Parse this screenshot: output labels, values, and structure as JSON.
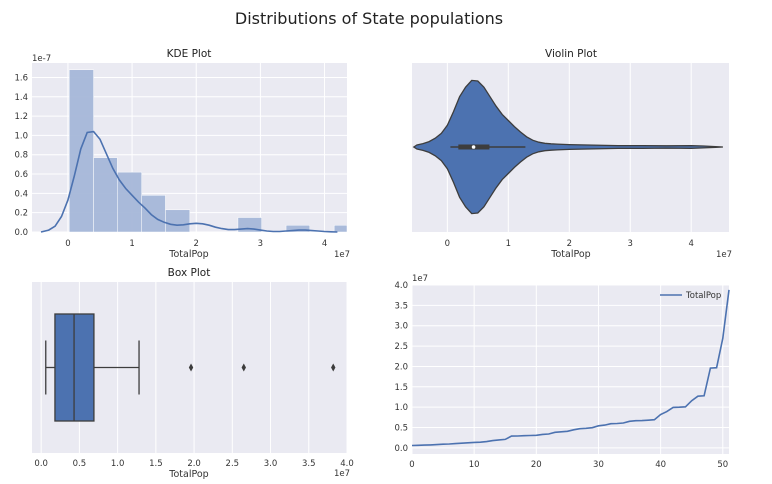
{
  "figure": {
    "title": "Distributions of State populations"
  },
  "chart_data": [
    {
      "type": "histogram+kde",
      "title": "KDE Plot",
      "xlabel": "TotalPop",
      "ylabel": "",
      "x_offset": "1e7",
      "y_offset": "1e-7",
      "xlim": [
        -0.56,
        4.35
      ],
      "ylim": [
        0,
        1.75
      ],
      "xticks": [
        0,
        1,
        2,
        3,
        4
      ],
      "yticks": [
        0.0,
        0.2,
        0.4,
        0.6,
        0.8,
        1.0,
        1.2,
        1.4,
        1.6
      ],
      "ytick_labels": [
        "0.0",
        "0.2",
        "0.4",
        "0.6",
        "0.8",
        "1.0",
        "1.2",
        "1.4",
        "1.6"
      ],
      "hist_bins": [
        {
          "x0": 0.02,
          "x1": 0.4,
          "density": 1.68
        },
        {
          "x0": 0.4,
          "x1": 0.77,
          "density": 0.77
        },
        {
          "x0": 0.77,
          "x1": 1.15,
          "density": 0.62
        },
        {
          "x0": 1.15,
          "x1": 1.52,
          "density": 0.38
        },
        {
          "x0": 1.52,
          "x1": 1.9,
          "density": 0.23
        },
        {
          "x0": 1.9,
          "x1": 2.27,
          "density": 0.0
        },
        {
          "x0": 2.27,
          "x1": 2.65,
          "density": 0.0
        },
        {
          "x0": 2.65,
          "x1": 3.02,
          "density": 0.15
        },
        {
          "x0": 3.02,
          "x1": 3.4,
          "density": 0.0
        },
        {
          "x0": 3.4,
          "x1": 3.77,
          "density": 0.07
        },
        {
          "x0": 3.77,
          "x1": 4.15,
          "density": 0.0
        },
        {
          "x0": 4.15,
          "x1": 4.52,
          "density": 0.07
        }
      ],
      "kde": {
        "x": [
          -0.42,
          -0.3,
          -0.2,
          -0.1,
          0.0,
          0.1,
          0.2,
          0.3,
          0.4,
          0.5,
          0.6,
          0.7,
          0.8,
          0.9,
          1.0,
          1.1,
          1.2,
          1.3,
          1.4,
          1.5,
          1.6,
          1.7,
          1.8,
          1.9,
          2.0,
          2.1,
          2.2,
          2.3,
          2.4,
          2.5,
          2.6,
          2.7,
          2.8,
          2.9,
          3.0,
          3.1,
          3.2,
          3.3,
          3.4,
          3.5,
          3.6,
          3.7,
          3.8,
          3.9,
          4.0,
          4.1,
          4.2
        ],
        "y": [
          0.0,
          0.02,
          0.06,
          0.16,
          0.33,
          0.58,
          0.86,
          1.03,
          1.04,
          0.96,
          0.81,
          0.66,
          0.54,
          0.45,
          0.38,
          0.31,
          0.25,
          0.18,
          0.13,
          0.1,
          0.08,
          0.07,
          0.075,
          0.085,
          0.09,
          0.085,
          0.07,
          0.05,
          0.035,
          0.025,
          0.025,
          0.03,
          0.035,
          0.03,
          0.02,
          0.01,
          0.005,
          0.005,
          0.01,
          0.015,
          0.02,
          0.02,
          0.015,
          0.01,
          0.005,
          0.002,
          0.0
        ]
      },
      "colors": {
        "hist": "#a6b8d9",
        "line": "#4c72b0"
      }
    },
    {
      "type": "violin",
      "title": "Violin Plot",
      "xlabel": "TotalPop",
      "x_offset": "1e7",
      "xlim": [
        -0.58,
        4.62
      ],
      "xticks": [
        0,
        1,
        2,
        3,
        4
      ],
      "profile": {
        "x": [
          -0.55,
          -0.5,
          -0.4,
          -0.3,
          -0.2,
          -0.1,
          0.0,
          0.1,
          0.2,
          0.3,
          0.4,
          0.5,
          0.6,
          0.7,
          0.8,
          0.9,
          1.0,
          1.1,
          1.2,
          1.3,
          1.4,
          1.5,
          1.6,
          1.7,
          1.8,
          2.0,
          2.4,
          2.8,
          3.2,
          3.6,
          4.0,
          4.2,
          4.4,
          4.52
        ],
        "halfwidth": [
          0.0,
          0.03,
          0.05,
          0.08,
          0.13,
          0.2,
          0.32,
          0.52,
          0.74,
          0.88,
          0.98,
          0.97,
          0.88,
          0.74,
          0.6,
          0.48,
          0.39,
          0.3,
          0.22,
          0.15,
          0.1,
          0.07,
          0.055,
          0.047,
          0.043,
          0.035,
          0.028,
          0.02,
          0.02,
          0.017,
          0.02,
          0.014,
          0.006,
          0.0
        ]
      },
      "box": {
        "q1": 0.18,
        "median": 0.43,
        "q3": 0.69,
        "whisker_low": 0.05,
        "whisker_high": 1.28
      },
      "colors": {
        "fill": "#4c72b0",
        "edge": "#3d3d3d"
      }
    },
    {
      "type": "box",
      "title": "Box Plot",
      "xlabel": "TotalPop",
      "x_offset": "1e7",
      "xlim": [
        -0.12,
        4.0
      ],
      "xticks": [
        0.0,
        0.5,
        1.0,
        1.5,
        2.0,
        2.5,
        3.0,
        3.5,
        4.0
      ],
      "xtick_labels": [
        "0.0",
        "0.5",
        "1.0",
        "1.5",
        "2.0",
        "2.5",
        "3.0",
        "3.5",
        "4.0"
      ],
      "box": {
        "whisker_low": 0.06,
        "q1": 0.18,
        "median": 0.43,
        "q3": 0.69,
        "whisker_high": 1.28
      },
      "outliers": [
        1.96,
        2.65,
        3.82
      ],
      "colors": {
        "fill": "#4c72b0",
        "edge": "#3d3d3d"
      }
    },
    {
      "type": "line",
      "title": "",
      "xlabel": "",
      "y_offset": "1e7",
      "xlim": [
        0,
        51
      ],
      "ylim": [
        -0.15,
        4.0
      ],
      "xticks": [
        0,
        10,
        20,
        30,
        40,
        50
      ],
      "yticks": [
        0.0,
        0.5,
        1.0,
        1.5,
        2.0,
        2.5,
        3.0,
        3.5,
        4.0
      ],
      "ytick_labels": [
        "0.0",
        "0.5",
        "1.0",
        "1.5",
        "2.0",
        "2.5",
        "3.0",
        "3.5",
        "4.0"
      ],
      "legend_position": "top-right",
      "series": [
        {
          "name": "TotalPop",
          "x": [
            0,
            1,
            2,
            3,
            4,
            5,
            6,
            7,
            8,
            9,
            10,
            11,
            12,
            13,
            14,
            15,
            16,
            17,
            18,
            19,
            20,
            21,
            22,
            23,
            24,
            25,
            26,
            27,
            28,
            29,
            30,
            31,
            32,
            33,
            34,
            35,
            36,
            37,
            38,
            39,
            40,
            41,
            42,
            43,
            44,
            45,
            46,
            47,
            48,
            49,
            50,
            51
          ],
          "values": [
            0.058,
            0.063,
            0.068,
            0.074,
            0.08,
            0.09,
            0.096,
            0.105,
            0.116,
            0.124,
            0.135,
            0.14,
            0.155,
            0.178,
            0.197,
            0.208,
            0.289,
            0.292,
            0.3,
            0.305,
            0.31,
            0.332,
            0.34,
            0.383,
            0.396,
            0.408,
            0.444,
            0.471,
            0.482,
            0.497,
            0.543,
            0.559,
            0.593,
            0.598,
            0.612,
            0.653,
            0.667,
            0.67,
            0.68,
            0.693,
            0.82,
            0.89,
            0.995,
            0.999,
            1.01,
            1.16,
            1.27,
            1.28,
            1.96,
            1.97,
            2.69,
            3.88
          ],
          "color": "#4c72b0"
        }
      ]
    }
  ]
}
